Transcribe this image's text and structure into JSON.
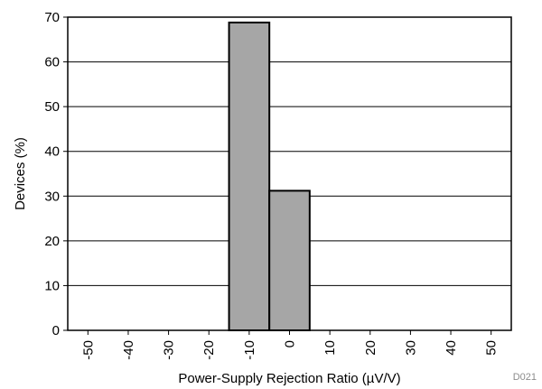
{
  "chart_data": {
    "type": "bar",
    "subtype": "histogram",
    "xlabel": "Power-Supply Rejection Ratio (µV/V)",
    "ylabel": "Devices (%)",
    "xlim": [
      -55,
      55
    ],
    "ylim": [
      0,
      70
    ],
    "x_ticks": [
      -50,
      -40,
      -30,
      -20,
      -10,
      0,
      10,
      20,
      30,
      40,
      50
    ],
    "x_tick_labels": [
      "-50",
      "-40",
      "-30",
      "-20",
      "-10",
      "0",
      "10",
      "20",
      "30",
      "40",
      "50"
    ],
    "y_ticks": [
      0,
      10,
      20,
      30,
      40,
      50,
      60,
      70
    ],
    "y_tick_labels": [
      "0",
      "10",
      "20",
      "30",
      "40",
      "50",
      "60",
      "70"
    ],
    "grid": {
      "horizontal": true,
      "vertical": false
    },
    "bins": [
      {
        "x_start": -15,
        "x_end": -5,
        "value": 68.8
      },
      {
        "x_start": -5,
        "x_end": 5,
        "value": 31.2
      }
    ],
    "bar_color": "#a6a6a6",
    "bar_edge_color": "#000000",
    "figure_id": "D021"
  }
}
